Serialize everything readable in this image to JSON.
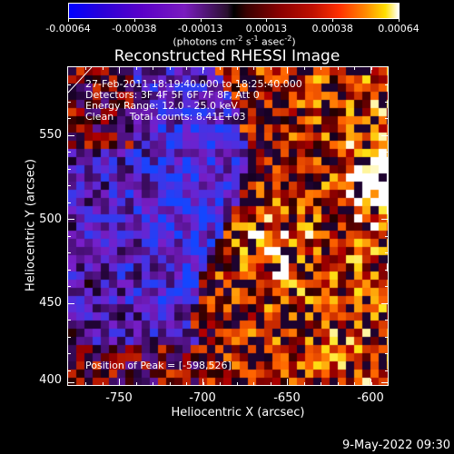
{
  "colorbar": {
    "labels": [
      "-0.00064",
      "-0.00038",
      "-0.00013",
      "0.00013",
      "0.00038",
      "0.00064"
    ],
    "units_prefix": "(photons cm",
    "units_exp1": "-2",
    "units_mid": " s",
    "units_exp2": "-1",
    "units_mid2": " asec",
    "units_exp3": "-2",
    "units_suffix": ")"
  },
  "plot": {
    "title": "Reconstructed RHESSI Image",
    "info": [
      "27-Feb-2011 18:19:40.000 to 18:25:40.000",
      "Detectors: 3F 4F 5F 6F 7F 8F, Att 0",
      "Energy Range: 12.0 - 25.0 keV",
      "Clean     Total counts: 8.41E+03"
    ],
    "peak_text": "Position of Peak = [-598,526]",
    "xlabel": "Heliocentric X (arcsec)",
    "ylabel": "Heliocentric Y (arcsec)",
    "x_ticks": [
      "-750",
      "-700",
      "-650",
      "-600"
    ],
    "y_ticks": [
      "550",
      "500",
      "450",
      "400"
    ]
  },
  "footer": {
    "timestamp": "9-May-2022 09:30"
  },
  "colors": {
    "negative": "#0000ff",
    "zero": "#000000",
    "positive_peak": "#ffffff"
  },
  "chart_data": {
    "type": "heatmap",
    "title": "Reconstructed RHESSI Image",
    "xlabel": "Heliocentric X (arcsec)",
    "ylabel": "Heliocentric Y (arcsec)",
    "xlim": [
      -778,
      -588
    ],
    "ylim": [
      398,
      588
    ],
    "color_range": [
      -0.00064,
      0.00064
    ],
    "peak_position": [
      -598,
      526
    ]
  }
}
